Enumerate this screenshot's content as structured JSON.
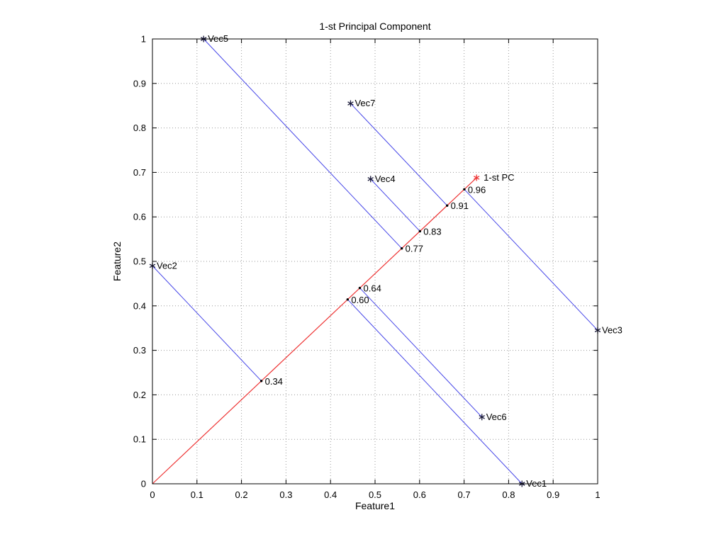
{
  "chart_data": {
    "type": "scatter",
    "title": "1-st Principal Component",
    "xlabel": "Feature1",
    "ylabel": "Feature2",
    "xlim": [
      0,
      1
    ],
    "ylim": [
      0,
      1
    ],
    "grid": true,
    "tick_labels": [
      "0",
      "0.1",
      "0.2",
      "0.3",
      "0.4",
      "0.5",
      "0.6",
      "0.7",
      "0.8",
      "0.9",
      "1"
    ],
    "vectors": [
      {
        "name": "Vec1",
        "x": 0.83,
        "y": 0.0,
        "projection_label": "0.60"
      },
      {
        "name": "Vec2",
        "x": 0.0,
        "y": 0.49,
        "projection_label": "0.34"
      },
      {
        "name": "Vec3",
        "x": 1.0,
        "y": 0.345,
        "projection_label": "0.96"
      },
      {
        "name": "Vec4",
        "x": 0.49,
        "y": 0.685,
        "projection_label": "0.83"
      },
      {
        "name": "Vec5",
        "x": 0.115,
        "y": 1.0,
        "projection_label": "0.77"
      },
      {
        "name": "Vec6",
        "x": 0.74,
        "y": 0.15,
        "projection_label": "0.64"
      },
      {
        "name": "Vec7",
        "x": 0.445,
        "y": 0.855,
        "projection_label": "0.91"
      }
    ],
    "pc_line": {
      "label": "1-st PC",
      "from": [
        0,
        0
      ],
      "to": [
        0.728,
        0.688
      ],
      "direction": [
        0.727,
        0.687
      ]
    },
    "colors": {
      "vector_line": "#4646e8",
      "pc_line": "#ee3333",
      "marker": "#1a1a3a",
      "grid": "#9a9a9a",
      "axis": "#000000",
      "dot": "#000000"
    }
  }
}
